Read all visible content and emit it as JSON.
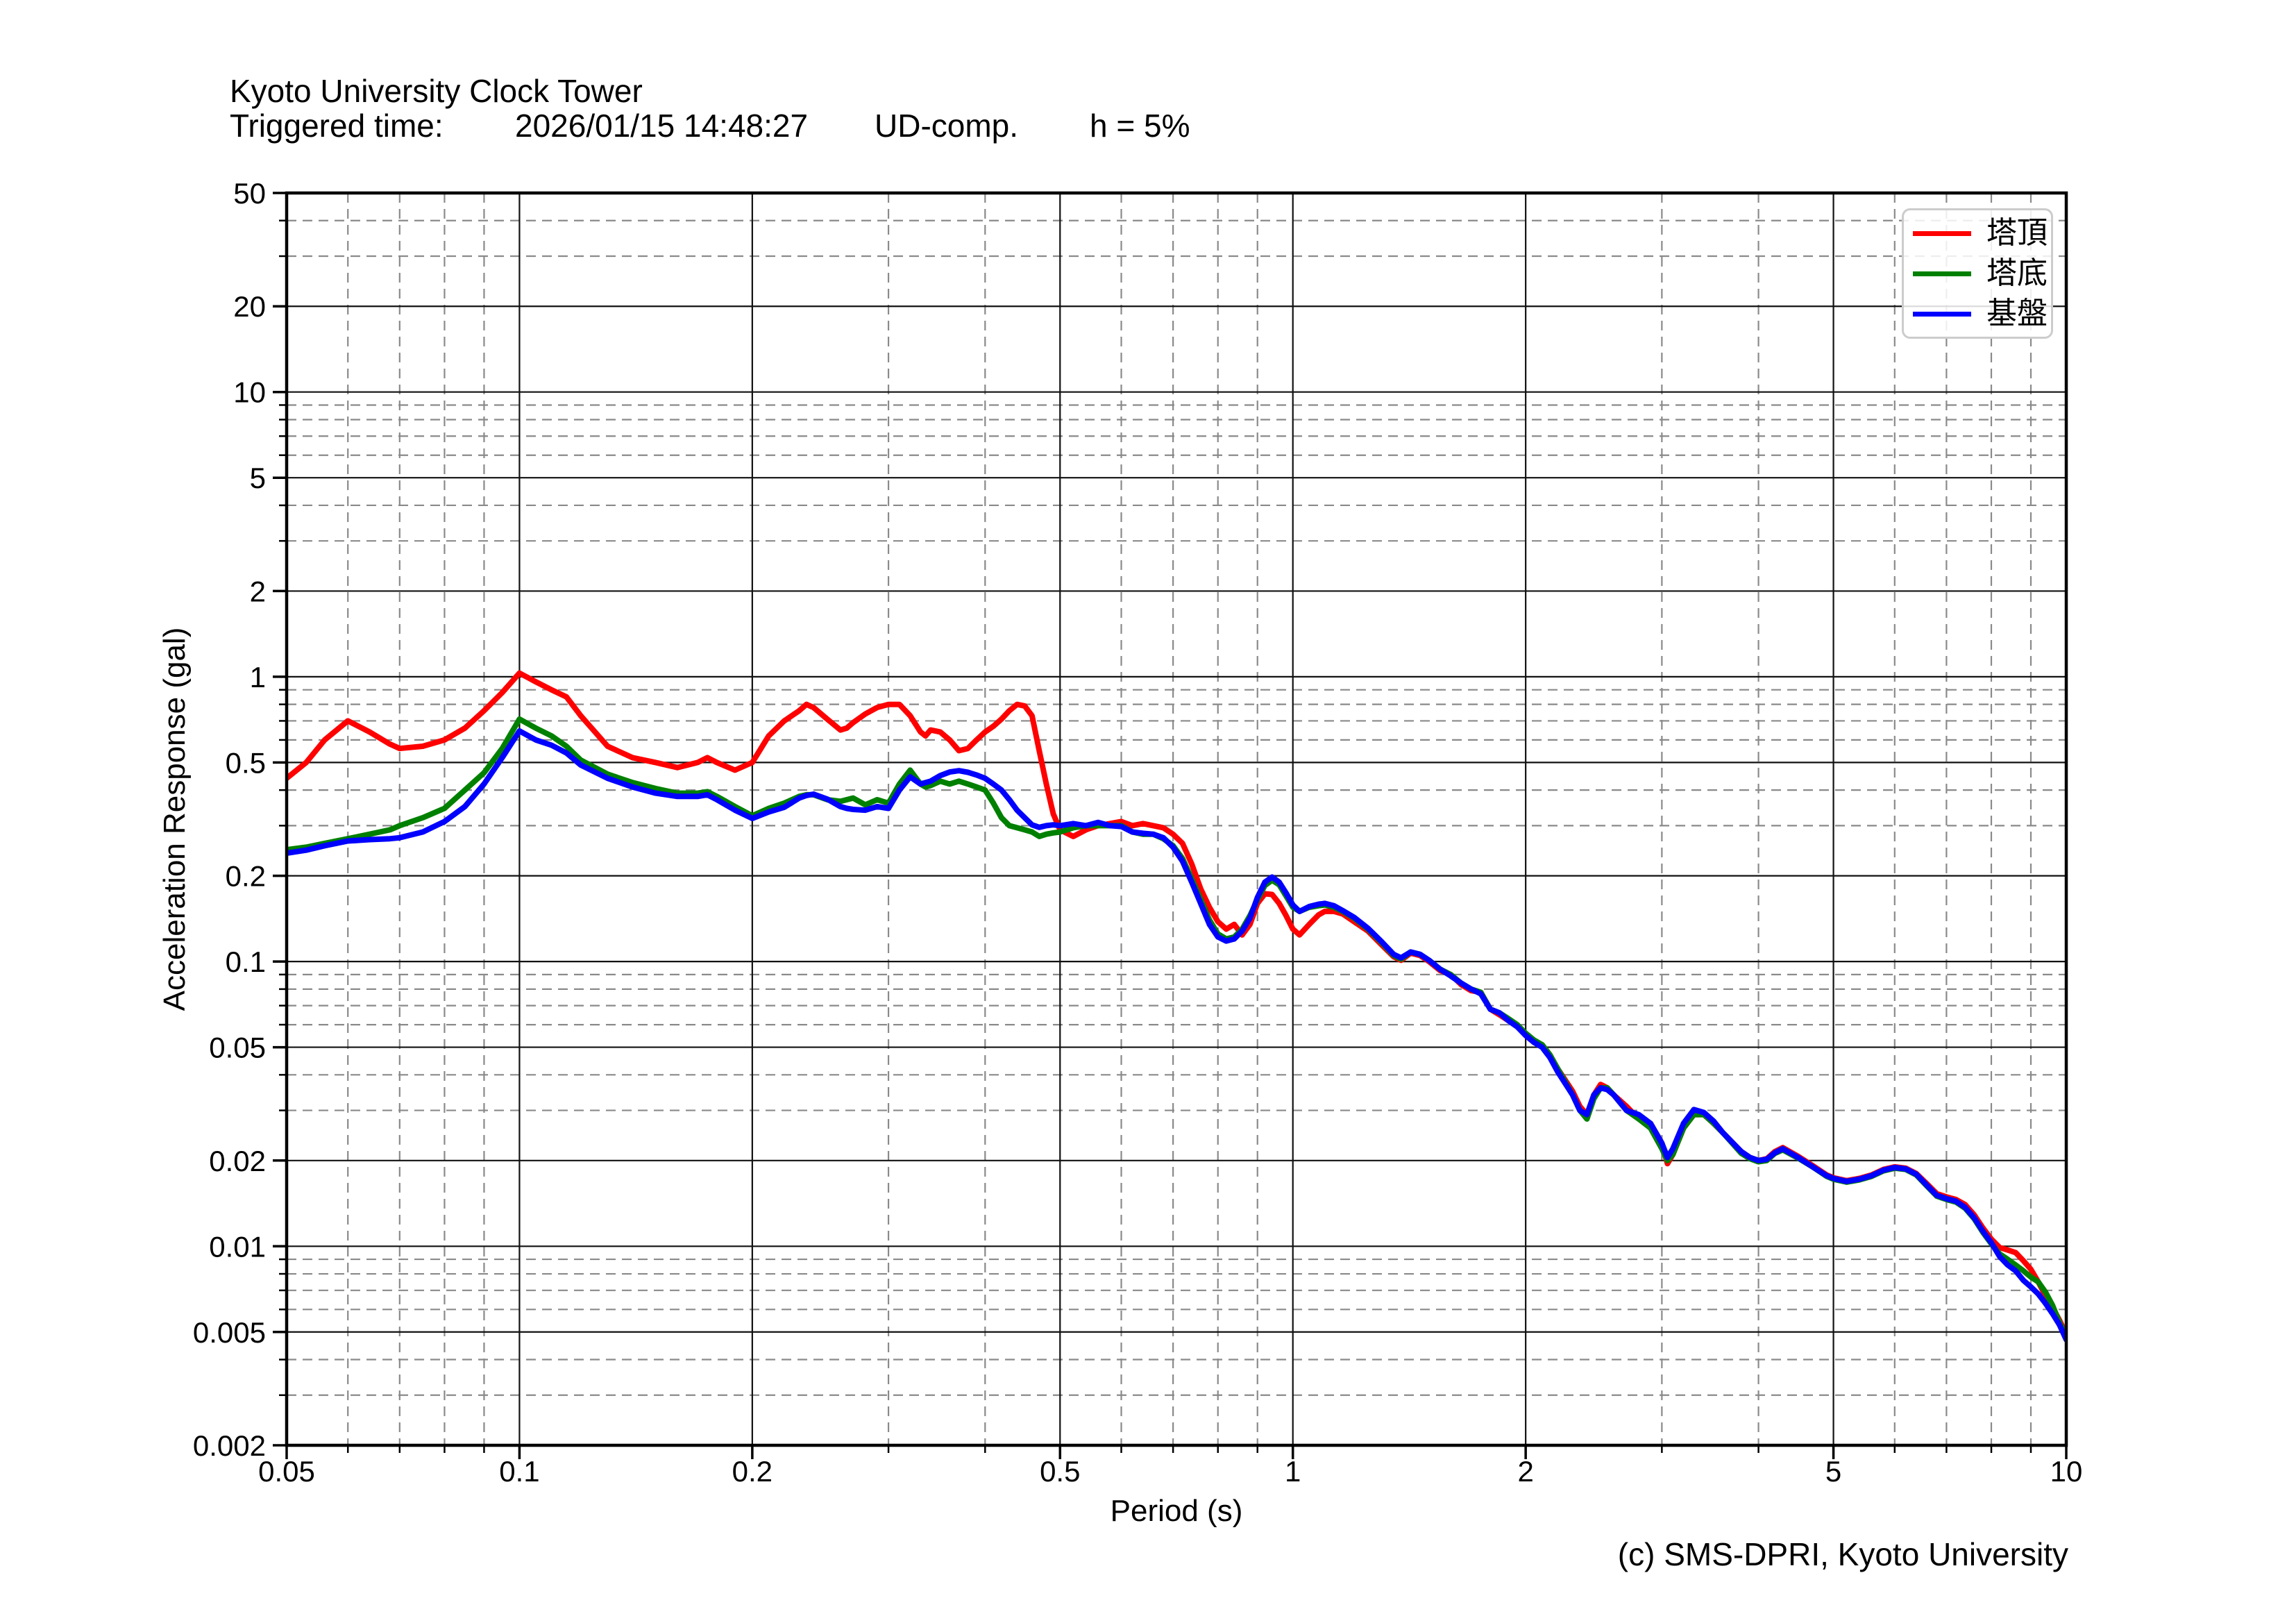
{
  "header": {
    "title": "Kyoto University Clock Tower",
    "triggered_label": "Triggered time:",
    "triggered_value": "2026/01/15 14:48:27",
    "component": "UD-comp.",
    "damping": "h = 5%"
  },
  "footer": {
    "copyright": "(c) SMS-DPRI, Kyoto University"
  },
  "legend": {
    "position": "upper right",
    "items": [
      {
        "label": "塔頂",
        "color": "#ff0000"
      },
      {
        "label": "塔底",
        "color": "#008000"
      },
      {
        "label": "基盤",
        "color": "#0000ff"
      }
    ]
  },
  "chart_data": {
    "type": "line",
    "title": "Kyoto University Clock Tower",
    "xlabel": "Period (s)",
    "ylabel": "Acceleration Response (gal)",
    "x_axis": {
      "scale": "log",
      "min": 0.05,
      "max": 10,
      "major_ticks": [
        0.05,
        0.1,
        0.2,
        0.5,
        1,
        2,
        5,
        10
      ],
      "major_labels": [
        "0.05",
        "0.1",
        "0.2",
        "0.5",
        "1",
        "2",
        "5",
        "10"
      ],
      "minor_ticks": [
        0.06,
        0.07,
        0.08,
        0.09,
        0.3,
        0.4,
        0.6,
        0.7,
        0.8,
        0.9,
        3,
        4,
        6,
        7,
        8,
        9
      ]
    },
    "y_axis": {
      "scale": "log",
      "min": 0.002,
      "max": 50,
      "major_ticks": [
        50,
        20,
        10,
        5,
        2,
        1,
        0.5,
        0.2,
        0.1,
        0.05,
        0.02,
        0.01,
        0.005,
        0.002
      ],
      "major_labels": [
        "50",
        "20",
        "10",
        "5",
        "2",
        "1",
        "0.5",
        "0.2",
        "0.1",
        "0.05",
        "0.02",
        "0.01",
        "0.005",
        "0.002"
      ],
      "minor_ticks": [
        30,
        40,
        6,
        7,
        8,
        9,
        3,
        4,
        0.6,
        0.7,
        0.8,
        0.9,
        0.3,
        0.4,
        0.06,
        0.07,
        0.08,
        0.09,
        0.03,
        0.04,
        0.006,
        0.007,
        0.008,
        0.009,
        0.003,
        0.004
      ]
    },
    "grid": {
      "major": "solid",
      "minor": "dashed"
    },
    "x": [
      0.05,
      0.053,
      0.056,
      0.06,
      0.064,
      0.068,
      0.07,
      0.075,
      0.08,
      0.085,
      0.09,
      0.095,
      0.1,
      0.105,
      0.11,
      0.115,
      0.12,
      0.13,
      0.14,
      0.15,
      0.16,
      0.17,
      0.175,
      0.18,
      0.19,
      0.2,
      0.21,
      0.22,
      0.23,
      0.235,
      0.24,
      0.25,
      0.26,
      0.265,
      0.27,
      0.28,
      0.29,
      0.3,
      0.31,
      0.32,
      0.33,
      0.335,
      0.34,
      0.35,
      0.36,
      0.37,
      0.38,
      0.39,
      0.4,
      0.41,
      0.42,
      0.43,
      0.44,
      0.45,
      0.46,
      0.47,
      0.48,
      0.49,
      0.5,
      0.52,
      0.54,
      0.56,
      0.58,
      0.6,
      0.62,
      0.64,
      0.66,
      0.68,
      0.7,
      0.72,
      0.74,
      0.76,
      0.78,
      0.8,
      0.82,
      0.84,
      0.86,
      0.88,
      0.9,
      0.92,
      0.94,
      0.96,
      0.98,
      1.0,
      1.02,
      1.05,
      1.08,
      1.1,
      1.13,
      1.16,
      1.2,
      1.25,
      1.3,
      1.35,
      1.38,
      1.42,
      1.46,
      1.5,
      1.55,
      1.6,
      1.65,
      1.7,
      1.75,
      1.8,
      1.85,
      1.9,
      1.95,
      2.0,
      2.05,
      2.1,
      2.15,
      2.2,
      2.3,
      2.35,
      2.4,
      2.45,
      2.5,
      2.55,
      2.6,
      2.7,
      2.8,
      2.9,
      3.0,
      3.05,
      3.1,
      3.2,
      3.3,
      3.4,
      3.5,
      3.6,
      3.8,
      3.9,
      4.0,
      4.1,
      4.2,
      4.3,
      4.5,
      4.7,
      4.9,
      5.0,
      5.2,
      5.4,
      5.6,
      5.8,
      6.0,
      6.2,
      6.4,
      6.6,
      6.8,
      7.0,
      7.2,
      7.4,
      7.6,
      7.8,
      8.0,
      8.2,
      8.4,
      8.6,
      8.8,
      9.0,
      9.2,
      9.4,
      9.6,
      9.8,
      10.0
    ],
    "series": [
      {
        "name": "塔頂",
        "color": "#ff0000",
        "values": [
          0.44,
          0.5,
          0.6,
          0.7,
          0.64,
          0.58,
          0.56,
          0.57,
          0.6,
          0.66,
          0.76,
          0.88,
          1.03,
          0.96,
          0.9,
          0.85,
          0.73,
          0.57,
          0.52,
          0.5,
          0.48,
          0.5,
          0.52,
          0.5,
          0.47,
          0.5,
          0.62,
          0.7,
          0.76,
          0.8,
          0.78,
          0.71,
          0.65,
          0.66,
          0.69,
          0.74,
          0.78,
          0.8,
          0.8,
          0.73,
          0.64,
          0.62,
          0.65,
          0.64,
          0.6,
          0.55,
          0.56,
          0.6,
          0.64,
          0.67,
          0.71,
          0.76,
          0.8,
          0.79,
          0.73,
          0.55,
          0.42,
          0.33,
          0.29,
          0.275,
          0.29,
          0.3,
          0.305,
          0.31,
          0.3,
          0.305,
          0.3,
          0.295,
          0.28,
          0.26,
          0.22,
          0.18,
          0.155,
          0.138,
          0.13,
          0.135,
          0.124,
          0.135,
          0.16,
          0.173,
          0.172,
          0.16,
          0.145,
          0.13,
          0.124,
          0.135,
          0.146,
          0.15,
          0.15,
          0.147,
          0.138,
          0.128,
          0.115,
          0.104,
          0.101,
          0.107,
          0.105,
          0.1,
          0.093,
          0.09,
          0.083,
          0.079,
          0.078,
          0.068,
          0.065,
          0.062,
          0.06,
          0.055,
          0.052,
          0.051,
          0.047,
          0.042,
          0.035,
          0.031,
          0.029,
          0.034,
          0.037,
          0.036,
          0.034,
          0.031,
          0.028,
          0.027,
          0.023,
          0.0195,
          0.021,
          0.026,
          0.029,
          0.029,
          0.027,
          0.025,
          0.0215,
          0.0205,
          0.02,
          0.0203,
          0.0215,
          0.0222,
          0.0207,
          0.0192,
          0.0178,
          0.0174,
          0.017,
          0.0173,
          0.0178,
          0.0186,
          0.019,
          0.0188,
          0.018,
          0.0166,
          0.0153,
          0.0149,
          0.0146,
          0.014,
          0.0129,
          0.0116,
          0.0106,
          0.0099,
          0.0097,
          0.0095,
          0.0089,
          0.0083,
          0.0075,
          0.0067,
          0.0061,
          0.0055,
          0.0049
        ]
      },
      {
        "name": "塔底",
        "color": "#008000",
        "values": [
          0.247,
          0.252,
          0.26,
          0.27,
          0.28,
          0.29,
          0.3,
          0.32,
          0.345,
          0.4,
          0.46,
          0.56,
          0.71,
          0.66,
          0.62,
          0.57,
          0.51,
          0.455,
          0.425,
          0.405,
          0.39,
          0.39,
          0.395,
          0.38,
          0.35,
          0.325,
          0.345,
          0.36,
          0.38,
          0.385,
          0.385,
          0.37,
          0.365,
          0.37,
          0.375,
          0.355,
          0.37,
          0.36,
          0.42,
          0.47,
          0.42,
          0.41,
          0.415,
          0.43,
          0.42,
          0.43,
          0.42,
          0.41,
          0.4,
          0.36,
          0.32,
          0.3,
          0.295,
          0.29,
          0.285,
          0.275,
          0.28,
          0.283,
          0.285,
          0.295,
          0.3,
          0.3,
          0.3,
          0.3,
          0.285,
          0.28,
          0.28,
          0.27,
          0.255,
          0.23,
          0.195,
          0.165,
          0.14,
          0.125,
          0.12,
          0.122,
          0.13,
          0.145,
          0.165,
          0.185,
          0.193,
          0.186,
          0.17,
          0.155,
          0.15,
          0.155,
          0.157,
          0.158,
          0.155,
          0.15,
          0.142,
          0.13,
          0.117,
          0.105,
          0.102,
          0.108,
          0.106,
          0.101,
          0.094,
          0.09,
          0.084,
          0.08,
          0.078,
          0.068,
          0.066,
          0.063,
          0.06,
          0.056,
          0.053,
          0.051,
          0.047,
          0.042,
          0.034,
          0.03,
          0.028,
          0.033,
          0.036,
          0.036,
          0.034,
          0.03,
          0.028,
          0.026,
          0.022,
          0.02,
          0.021,
          0.026,
          0.029,
          0.029,
          0.027,
          0.025,
          0.0212,
          0.0203,
          0.0198,
          0.02,
          0.0212,
          0.0218,
          0.0204,
          0.019,
          0.0176,
          0.0172,
          0.0168,
          0.0171,
          0.0176,
          0.0184,
          0.0188,
          0.0186,
          0.0178,
          0.0163,
          0.015,
          0.0146,
          0.0143,
          0.0136,
          0.0125,
          0.0112,
          0.0102,
          0.0094,
          0.009,
          0.0086,
          0.0082,
          0.0078,
          0.0075,
          0.0069,
          0.0062,
          0.0054,
          0.0048
        ]
      },
      {
        "name": "基盤",
        "color": "#0000ff",
        "values": [
          0.24,
          0.246,
          0.255,
          0.265,
          0.268,
          0.27,
          0.272,
          0.285,
          0.31,
          0.35,
          0.42,
          0.52,
          0.645,
          0.6,
          0.575,
          0.54,
          0.49,
          0.44,
          0.41,
          0.39,
          0.38,
          0.38,
          0.385,
          0.37,
          0.34,
          0.318,
          0.335,
          0.348,
          0.375,
          0.383,
          0.387,
          0.372,
          0.35,
          0.345,
          0.342,
          0.34,
          0.35,
          0.345,
          0.4,
          0.445,
          0.42,
          0.425,
          0.43,
          0.45,
          0.463,
          0.468,
          0.462,
          0.452,
          0.44,
          0.42,
          0.4,
          0.37,
          0.34,
          0.32,
          0.302,
          0.296,
          0.3,
          0.302,
          0.3,
          0.305,
          0.3,
          0.308,
          0.3,
          0.298,
          0.285,
          0.282,
          0.28,
          0.272,
          0.252,
          0.225,
          0.19,
          0.16,
          0.135,
          0.122,
          0.118,
          0.12,
          0.128,
          0.142,
          0.168,
          0.19,
          0.198,
          0.19,
          0.174,
          0.158,
          0.15,
          0.156,
          0.159,
          0.16,
          0.157,
          0.151,
          0.143,
          0.131,
          0.118,
          0.106,
          0.103,
          0.108,
          0.106,
          0.101,
          0.094,
          0.089,
          0.084,
          0.08,
          0.077,
          0.068,
          0.066,
          0.062,
          0.059,
          0.055,
          0.052,
          0.05,
          0.046,
          0.041,
          0.034,
          0.03,
          0.029,
          0.034,
          0.036,
          0.0355,
          0.034,
          0.03,
          0.029,
          0.027,
          0.023,
          0.0205,
          0.022,
          0.027,
          0.0302,
          0.0295,
          0.0275,
          0.025,
          0.0215,
          0.0205,
          0.02,
          0.0202,
          0.0213,
          0.022,
          0.0205,
          0.019,
          0.0177,
          0.0173,
          0.0169,
          0.0172,
          0.0177,
          0.0185,
          0.0189,
          0.0187,
          0.0179,
          0.0164,
          0.0151,
          0.0147,
          0.0144,
          0.0137,
          0.0126,
          0.0113,
          0.0103,
          0.0092,
          0.0086,
          0.0082,
          0.0076,
          0.0072,
          0.0068,
          0.0063,
          0.0058,
          0.0053,
          0.0047
        ]
      }
    ]
  }
}
